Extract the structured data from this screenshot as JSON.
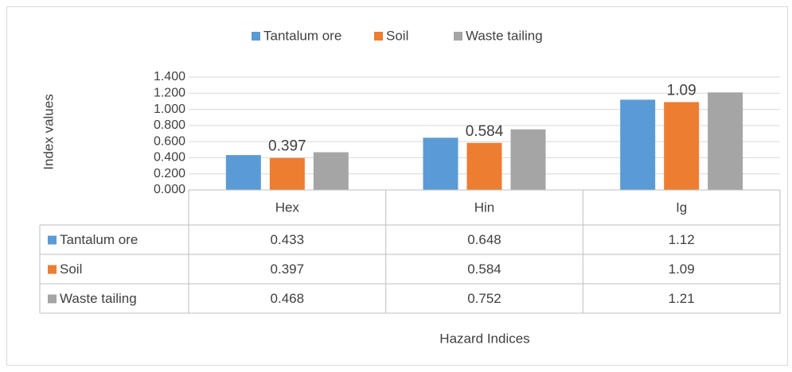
{
  "chart_data": {
    "type": "bar",
    "categories": [
      "Hex",
      "Hin",
      "Ig"
    ],
    "series": [
      {
        "name": "Tantalum ore",
        "color": "#5b9bd5",
        "values": [
          0.433,
          0.648,
          1.12
        ]
      },
      {
        "name": "Soil",
        "color": "#ed7d31",
        "values": [
          0.397,
          0.584,
          1.09
        ]
      },
      {
        "name": "Waste tailing",
        "color": "#a5a5a5",
        "values": [
          0.468,
          0.752,
          1.21
        ]
      }
    ],
    "labeled_series": 1,
    "y_label": "Index values",
    "x_label": "Hazard Indices",
    "ylim": [
      0,
      1.4
    ],
    "yticks": [
      {
        "value": 0,
        "label": "0.000"
      },
      {
        "value": 0.2,
        "label": "0.200"
      },
      {
        "value": 0.4,
        "label": "0.400"
      },
      {
        "value": 0.6,
        "label": "0.600"
      },
      {
        "value": 0.8,
        "label": "0.800"
      },
      {
        "value": 1.0,
        "label": "1.000"
      },
      {
        "value": 1.2,
        "label": "1.200"
      },
      {
        "value": 1.4,
        "label": "1.400"
      }
    ],
    "grid": true,
    "legend": "top"
  }
}
